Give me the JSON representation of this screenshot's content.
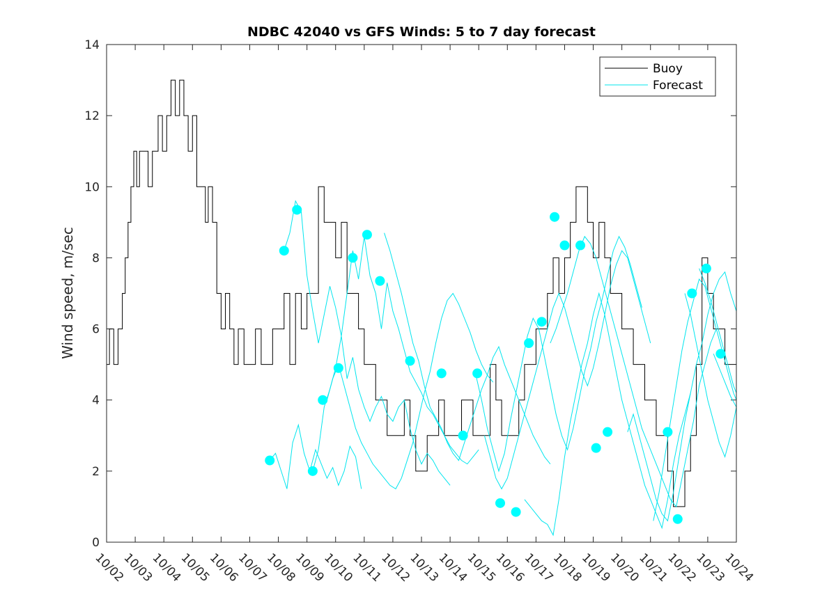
{
  "chart_data": {
    "type": "line",
    "title": "NDBC 42040 vs GFS Winds: 5 to 7 day forecast",
    "xlabel": "",
    "ylabel": "Wind speed, m/sec",
    "xlim": [
      0,
      22
    ],
    "ylim": [
      0,
      14
    ],
    "yticks": [
      0,
      2,
      4,
      6,
      8,
      10,
      12,
      14
    ],
    "x_tick_labels": [
      "10/02",
      "10/03",
      "10/04",
      "10/05",
      "10/06",
      "10/07",
      "10/08",
      "10/09",
      "10/10",
      "10/11",
      "10/12",
      "10/13",
      "10/14",
      "10/15",
      "10/16",
      "10/17",
      "10/18",
      "10/19",
      "10/20",
      "10/21",
      "10/22",
      "10/23",
      "10/24"
    ],
    "legend": {
      "position": "top-right",
      "entries": [
        "Buoy",
        "Forecast"
      ]
    },
    "colors": {
      "buoy": "#000000",
      "forecast": "#00e5ee",
      "marker": "#00ffff"
    },
    "series": [
      {
        "name": "Buoy",
        "x": [
          0.0,
          0.1,
          0.25,
          0.4,
          0.55,
          0.65,
          0.75,
          0.85,
          0.95,
          1.05,
          1.15,
          1.3,
          1.45,
          1.6,
          1.8,
          1.95,
          2.1,
          2.25,
          2.4,
          2.55,
          2.7,
          2.85,
          3.0,
          3.15,
          3.3,
          3.45,
          3.55,
          3.7,
          3.85,
          4.0,
          4.15,
          4.3,
          4.45,
          4.6,
          4.8,
          5.0,
          5.2,
          5.4,
          5.6,
          5.8,
          6.0,
          6.2,
          6.4,
          6.6,
          6.8,
          7.0,
          7.2,
          7.4,
          7.6,
          7.8,
          8.0,
          8.2,
          8.4,
          8.6,
          8.8,
          9.0,
          9.2,
          9.4,
          9.6,
          9.8,
          10.0,
          10.2,
          10.4,
          10.6,
          10.8,
          11.0,
          11.2,
          11.4,
          11.6,
          11.8,
          12.0,
          12.2,
          12.4,
          12.6,
          12.8,
          13.0,
          13.2,
          13.4,
          13.6,
          13.8,
          14.0,
          14.2,
          14.4,
          14.6,
          14.8,
          15.0,
          15.2,
          15.4,
          15.6,
          15.8,
          16.0,
          16.2,
          16.4,
          16.6,
          16.8,
          17.0,
          17.2,
          17.4,
          17.6,
          17.8,
          18.0,
          18.2,
          18.4,
          18.6,
          18.8,
          19.0,
          19.2,
          19.4,
          19.6,
          19.8,
          20.0,
          20.2,
          20.4,
          20.6,
          20.8,
          21.0,
          21.2,
          21.4,
          21.6,
          21.8,
          22.0
        ],
        "y": [
          5,
          6,
          5,
          6,
          7,
          8,
          9,
          10,
          11,
          10,
          11,
          11,
          10,
          11,
          12,
          11,
          12,
          13,
          12,
          13,
          12,
          11,
          12,
          10,
          10,
          9,
          10,
          9,
          7,
          6,
          7,
          6,
          5,
          6,
          5,
          5,
          6,
          5,
          5,
          6,
          6,
          7,
          5,
          7,
          6,
          7,
          7,
          10,
          9,
          9,
          8,
          9,
          7,
          7,
          6,
          5,
          5,
          4,
          4,
          3,
          3,
          3,
          4,
          3,
          2,
          2,
          3,
          3,
          4,
          3,
          3,
          3,
          4,
          4,
          3,
          3,
          3,
          5,
          4,
          3,
          3,
          3,
          4,
          5,
          5,
          6,
          6,
          7,
          8,
          7,
          8,
          9,
          10,
          10,
          9,
          8,
          9,
          8,
          7,
          7,
          6,
          6,
          5,
          5,
          4,
          4,
          3,
          3,
          2,
          1,
          1,
          2,
          3,
          5,
          8,
          7,
          6,
          6,
          5,
          5,
          4
        ]
      },
      {
        "name": "Forecast",
        "segments": [
          {
            "x": [
              5.7,
              5.9,
              6.1,
              6.3,
              6.5,
              6.7,
              6.9,
              7.1,
              7.3,
              7.5,
              7.7,
              7.9,
              8.1,
              8.3,
              8.5,
              8.7,
              8.9
            ],
            "y": [
              2.3,
              2.5,
              2.0,
              1.5,
              2.8,
              3.3,
              2.5,
              2.0,
              2.6,
              2.2,
              1.8,
              2.1,
              1.6,
              2.0,
              2.7,
              2.4,
              1.5
            ]
          },
          {
            "x": [
              6.2,
              6.4,
              6.6,
              6.8,
              7.0,
              7.2,
              7.4,
              7.6,
              7.8,
              8.0,
              8.2,
              8.4,
              8.6,
              8.8,
              9.0,
              9.2,
              9.4,
              9.6,
              9.8,
              10.0,
              10.2,
              10.4,
              10.6,
              10.8,
              11.0,
              11.2,
              11.4,
              11.6,
              11.8,
              12.0
            ],
            "y": [
              8.2,
              8.7,
              9.6,
              9.3,
              7.5,
              6.5,
              5.6,
              6.4,
              7.2,
              6.6,
              5.8,
              4.6,
              5.2,
              4.3,
              3.8,
              3.4,
              3.8,
              4.1,
              3.6,
              3.4,
              3.8,
              4.0,
              3.2,
              2.6,
              2.2,
              2.5,
              2.3,
              2.0,
              1.8,
              1.6
            ]
          },
          {
            "x": [
              7.2,
              7.4,
              7.6,
              7.8,
              8.0,
              8.2,
              8.4,
              8.6,
              8.8,
              9.0,
              9.2,
              9.4,
              9.6,
              9.8,
              10.0,
              10.2,
              10.4,
              10.6,
              10.8,
              11.0,
              11.2,
              11.4,
              11.6,
              11.8,
              12.0,
              12.2,
              12.4,
              12.6,
              12.8,
              13.0
            ],
            "y": [
              2.0,
              2.6,
              3.8,
              4.3,
              4.9,
              5.8,
              7.0,
              8.2,
              7.4,
              8.6,
              7.5,
              7.0,
              6.0,
              7.3,
              6.5,
              6.0,
              5.4,
              4.8,
              4.5,
              4.2,
              3.8,
              3.6,
              3.3,
              3.0,
              2.7,
              2.5,
              2.3,
              2.2,
              2.4,
              2.6
            ]
          },
          {
            "x": [
              7.7,
              7.9,
              8.1,
              8.3,
              8.5,
              8.7,
              8.9,
              9.1,
              9.3,
              9.5,
              9.7,
              9.9,
              10.1,
              10.3,
              10.5,
              10.7,
              10.9,
              11.1,
              11.3,
              11.5,
              11.7,
              11.9,
              12.1,
              12.3,
              12.5,
              12.7,
              12.9,
              13.1,
              13.3,
              13.5
            ],
            "y": [
              4.0,
              4.6,
              5.0,
              4.4,
              3.8,
              3.2,
              2.8,
              2.5,
              2.2,
              2.0,
              1.8,
              1.6,
              1.5,
              1.8,
              2.3,
              2.8,
              3.5,
              4.2,
              4.8,
              5.6,
              6.3,
              6.8,
              7.0,
              6.7,
              6.3,
              5.9,
              5.4,
              5.0,
              4.7,
              4.5
            ]
          },
          {
            "x": [
              9.7,
              9.9,
              10.1,
              10.3,
              10.5,
              10.7,
              10.9,
              11.1,
              11.3,
              11.5,
              11.7,
              11.9,
              12.1,
              12.3,
              12.5,
              12.7,
              12.9,
              13.1,
              13.3,
              13.5,
              13.7,
              13.9,
              14.1,
              14.3,
              14.5,
              14.7,
              14.9,
              15.1,
              15.3,
              15.5
            ],
            "y": [
              8.7,
              8.2,
              7.6,
              7.0,
              6.3,
              5.6,
              5.1,
              4.4,
              3.8,
              3.5,
              3.2,
              2.8,
              2.5,
              2.3,
              2.8,
              3.3,
              3.8,
              4.3,
              4.7,
              5.2,
              5.5,
              5.0,
              4.6,
              4.2,
              3.8,
              3.4,
              3.0,
              2.7,
              2.4,
              2.2
            ]
          },
          {
            "x": [
              12.9,
              13.1,
              13.3,
              13.5,
              13.7,
              13.9,
              14.1,
              14.3,
              14.5,
              14.7,
              14.9,
              15.1,
              15.3,
              15.5,
              15.7,
              15.9,
              16.1,
              16.3,
              16.5,
              16.7,
              16.9,
              17.1,
              17.3,
              17.5,
              17.7,
              17.9,
              18.1,
              18.3,
              18.5,
              18.7
            ],
            "y": [
              4.7,
              4.0,
              3.2,
              2.6,
              2.0,
              2.5,
              3.4,
              4.2,
              5.0,
              5.8,
              6.3,
              6.0,
              5.2,
              4.4,
              3.6,
              3.0,
              2.6,
              3.2,
              4.0,
              4.8,
              5.4,
              6.2,
              6.8,
              7.5,
              8.2,
              8.6,
              8.3,
              7.8,
              7.2,
              6.6
            ]
          },
          {
            "x": [
              13.2,
              13.4,
              13.6,
              13.8,
              14.0,
              14.2,
              14.4,
              14.6,
              14.8,
              15.0,
              15.2,
              15.4,
              15.6,
              15.8,
              16.0,
              16.2,
              16.4,
              16.6,
              16.8,
              17.0,
              17.2,
              17.4,
              17.6,
              17.8,
              18.0,
              18.2,
              18.4,
              18.6,
              18.8,
              19.0
            ],
            "y": [
              3.0,
              2.4,
              1.8,
              1.5,
              1.8,
              2.4,
              3.0,
              3.6,
              4.2,
              4.8,
              5.4,
              6.0,
              6.6,
              7.0,
              6.6,
              6.0,
              5.4,
              4.8,
              4.4,
              4.9,
              5.6,
              6.4,
              7.2,
              7.8,
              8.2,
              8.0,
              7.4,
              6.8,
              6.2,
              5.6
            ]
          },
          {
            "x": [
              14.6,
              14.8,
              15.0,
              15.2,
              15.4,
              15.6,
              15.8,
              16.0,
              16.2,
              16.4,
              16.6,
              16.8,
              17.0,
              17.2,
              17.4,
              17.6,
              17.8,
              18.0,
              18.2,
              18.4,
              18.6,
              18.8,
              19.0,
              19.2,
              19.4,
              19.6,
              19.8,
              20.0,
              20.2,
              20.4
            ],
            "y": [
              1.2,
              1.0,
              0.8,
              0.6,
              0.5,
              0.2,
              1.2,
              2.4,
              3.4,
              4.2,
              5.0,
              5.6,
              6.4,
              7.0,
              6.4,
              5.6,
              4.8,
              4.0,
              3.4,
              2.8,
              2.2,
              1.6,
              1.2,
              0.8,
              0.4,
              1.2,
              2.2,
              3.0,
              3.6,
              4.2
            ]
          },
          {
            "x": [
              15.5,
              15.7,
              15.9,
              16.1,
              16.3,
              16.5,
              16.7,
              16.9,
              17.1,
              17.3,
              17.5,
              17.7,
              17.9,
              18.1,
              18.3,
              18.5,
              18.7,
              18.9,
              19.1,
              19.3,
              19.5,
              19.7,
              19.9,
              20.1,
              20.3,
              20.5,
              20.7,
              20.9,
              21.1,
              21.3
            ],
            "y": [
              5.6,
              6.0,
              6.5,
              7.0,
              7.6,
              8.2,
              8.6,
              8.4,
              8.0,
              7.4,
              6.8,
              6.2,
              5.6,
              5.0,
              4.4,
              3.8,
              3.2,
              2.8,
              2.4,
              2.0,
              1.6,
              1.2,
              1.0,
              1.8,
              2.6,
              3.4,
              4.4,
              5.0,
              5.6,
              6.0
            ]
          },
          {
            "x": [
              18.2,
              18.4,
              18.6,
              18.8,
              19.0,
              19.2,
              19.4,
              19.6,
              19.8,
              20.0,
              20.2,
              20.4,
              20.6,
              20.8,
              21.0,
              21.2,
              21.4,
              21.6,
              21.8,
              22.0
            ],
            "y": [
              3.1,
              3.6,
              3.0,
              2.4,
              1.8,
              1.2,
              0.8,
              0.6,
              1.4,
              2.4,
              3.4,
              4.2,
              5.0,
              5.6,
              6.4,
              7.0,
              7.4,
              7.6,
              7.0,
              6.5
            ]
          },
          {
            "x": [
              19.1,
              19.3,
              19.5,
              19.7,
              19.9,
              20.1,
              20.3,
              20.5,
              20.7,
              20.9,
              21.1,
              21.3,
              21.5,
              21.7,
              21.9,
              22.0
            ],
            "y": [
              0.6,
              1.4,
              2.4,
              3.4,
              4.4,
              5.4,
              6.2,
              6.8,
              7.4,
              7.2,
              6.6,
              6.0,
              5.4,
              4.8,
              4.2,
              4.0
            ]
          },
          {
            "x": [
              20.2,
              20.4,
              20.6,
              20.8,
              21.0,
              21.2,
              21.4,
              21.6,
              21.8,
              22.0
            ],
            "y": [
              7.0,
              6.4,
              5.6,
              4.8,
              4.0,
              3.4,
              2.8,
              2.4,
              3.0,
              3.8
            ]
          },
          {
            "x": [
              20.7,
              20.9,
              21.1,
              21.3,
              21.5,
              21.7,
              21.9,
              22.0
            ],
            "y": [
              7.7,
              7.3,
              6.8,
              6.2,
              5.6,
              5.0,
              4.4,
              4.2
            ]
          },
          {
            "x": [
              21.2,
              21.4,
              21.6,
              21.8,
              22.0
            ],
            "y": [
              5.3,
              4.9,
              4.5,
              4.1,
              3.8
            ]
          }
        ]
      }
    ],
    "markers": {
      "x": [
        5.7,
        6.2,
        6.65,
        7.2,
        7.55,
        8.1,
        8.6,
        9.1,
        9.55,
        10.6,
        11.7,
        12.45,
        12.95,
        13.75,
        14.3,
        14.75,
        15.2,
        15.65,
        16.0,
        16.55,
        17.1,
        17.5,
        19.6,
        19.95,
        20.45,
        20.95,
        21.45
      ],
      "y": [
        2.3,
        8.2,
        9.35,
        2.0,
        4.0,
        4.9,
        8.0,
        8.65,
        7.35,
        5.1,
        4.75,
        3.0,
        4.75,
        1.1,
        0.85,
        5.6,
        6.2,
        9.15,
        8.35,
        8.35,
        2.65,
        3.1,
        3.1,
        0.65,
        7.0,
        7.7,
        5.3
      ]
    }
  }
}
